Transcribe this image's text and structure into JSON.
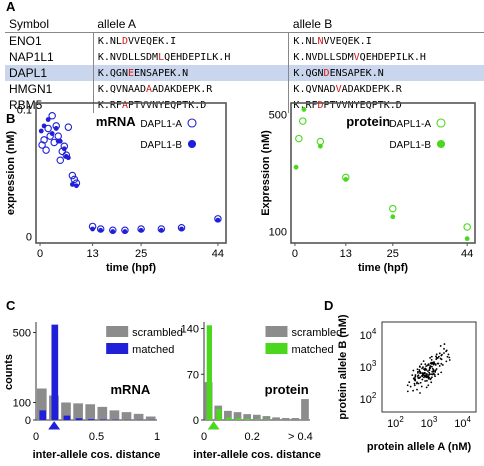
{
  "panels": {
    "a": "A",
    "b": "B",
    "c": "C",
    "d": "D"
  },
  "table": {
    "headers": [
      "Symbol",
      "allele A",
      "allele B"
    ],
    "rows": [
      {
        "symbol": "ENO1",
        "a": [
          "K.NL",
          "D",
          "VVEQEK.I"
        ],
        "b": [
          "K.NL",
          "N",
          "VVEQEK.I"
        ],
        "highlight": false
      },
      {
        "symbol": "NAP1L1",
        "a": [
          "K.NVDLLSDM",
          "L",
          "QEHDEPILK.H"
        ],
        "b": [
          "K.NVDLLSDM",
          "V",
          "QEHDEPILK.H"
        ],
        "highlight": false
      },
      {
        "symbol": "DAPL1",
        "a": [
          "K.QGN",
          "E",
          "ENSAPEK.N"
        ],
        "b": [
          "K.QGN",
          "D",
          "ENSAPEK.N"
        ],
        "highlight": true
      },
      {
        "symbol": "HMGN1",
        "a": [
          "K.QVNAAD",
          "A",
          "ADAKDEPK.R"
        ],
        "b": [
          "K.QVNAD",
          "V",
          "ADAKDEPK.R"
        ],
        "highlight": false
      },
      {
        "symbol": "RBM5",
        "a": [
          "K.RF",
          "A",
          "PTVVNYEQPTK.D"
        ],
        "b": [
          "K.RF",
          "D",
          "PTVVNYEQPTK.D"
        ],
        "highlight": false
      }
    ]
  },
  "colors": {
    "mrna": "#2020d8",
    "protein": "#4bd81c",
    "grey": "#8c8c8c",
    "highlight": "#c9d6ee",
    "aa_change": "#d21a1a"
  },
  "chart_data": [
    {
      "id": "B-mRNA",
      "type": "scatter",
      "title": "mRNA",
      "xlabel": "time (hpf)",
      "ylabel": "expression (nM)",
      "xticks": [
        "0",
        "13",
        "25",
        "44"
      ],
      "xtick_vals": [
        0,
        13,
        25,
        44
      ],
      "yticks": [
        "0",
        "0.1"
      ],
      "ytick_vals": [
        0,
        0.1
      ],
      "xlim": [
        -1,
        46
      ],
      "ylim": [
        -0.005,
        0.105
      ],
      "series": [
        {
          "name": "DAPL1-A",
          "marker": "open",
          "color": "#2020d8",
          "points": [
            [
              0.5,
              0.072
            ],
            [
              1,
              0.076
            ],
            [
              1.5,
              0.068
            ],
            [
              2,
              0.085
            ],
            [
              2.5,
              0.079
            ],
            [
              3,
              0.095
            ],
            [
              3.5,
              0.074
            ],
            [
              4,
              0.087
            ],
            [
              4.5,
              0.079
            ],
            [
              5,
              0.06
            ],
            [
              5.5,
              0.067
            ],
            [
              6,
              0.071
            ],
            [
              6.5,
              0.064
            ],
            [
              7,
              0.086
            ],
            [
              8,
              0.048
            ],
            [
              8.5,
              0.045
            ],
            [
              9,
              0.042
            ],
            [
              13,
              0.008
            ],
            [
              15,
              0.006
            ],
            [
              18,
              0.005
            ],
            [
              21,
              0.005
            ],
            [
              25,
              0.006
            ],
            [
              30,
              0.006
            ],
            [
              35,
              0.007
            ],
            [
              44,
              0.014
            ]
          ]
        },
        {
          "name": "DAPL1-B",
          "marker": "filled",
          "color": "#2020d8",
          "points": [
            [
              0.3,
              0.083
            ],
            [
              1,
              0.087
            ],
            [
              2,
              0.092
            ],
            [
              3,
              0.081
            ],
            [
              4,
              0.085
            ],
            [
              4.5,
              0.075
            ],
            [
              5,
              0.075
            ],
            [
              6,
              0.069
            ],
            [
              6.5,
              0.063
            ],
            [
              7,
              0.062
            ],
            [
              8,
              0.041
            ],
            [
              9,
              0.04
            ],
            [
              13,
              0.006
            ],
            [
              15,
              0.005
            ],
            [
              18,
              0.004
            ],
            [
              21,
              0.004
            ],
            [
              25,
              0.005
            ],
            [
              30,
              0.005
            ],
            [
              35,
              0.006
            ],
            [
              44,
              0.013
            ]
          ]
        }
      ]
    },
    {
      "id": "B-protein",
      "type": "scatter",
      "title": "protein",
      "xlabel": "time (hpf)",
      "ylabel": "Expression (nM)",
      "xticks": [
        "0",
        "13",
        "25",
        "44"
      ],
      "xtick_vals": [
        0,
        13,
        25,
        44
      ],
      "yticks": [
        "100",
        "500"
      ],
      "ytick_vals": [
        100,
        500
      ],
      "xlim": [
        -1,
        46
      ],
      "ylim": [
        60,
        540
      ],
      "series": [
        {
          "name": "DAPL1-A",
          "marker": "open",
          "color": "#4bd81c",
          "points": [
            [
              1,
              418
            ],
            [
              2,
              478
            ],
            [
              6.5,
              408
            ],
            [
              13,
              285
            ],
            [
              25,
              178
            ],
            [
              44,
              115
            ]
          ]
        },
        {
          "name": "DAPL1-B",
          "marker": "filled",
          "color": "#4bd81c",
          "points": [
            [
              0.3,
              320
            ],
            [
              2.3,
              518
            ],
            [
              6.5,
              392
            ],
            [
              13,
              278
            ],
            [
              25,
              150
            ],
            [
              44,
              75
            ]
          ]
        }
      ]
    },
    {
      "id": "C-mRNA",
      "type": "bar",
      "title": "mRNA",
      "xlabel": "inter-allele cos. distance",
      "ylabel": "counts",
      "xticks": [
        "0",
        "0.5",
        "1"
      ],
      "xtick_vals": [
        0,
        0.5,
        1
      ],
      "yticks": [
        "0",
        "100",
        "500"
      ],
      "ytick_vals": [
        0,
        100,
        500
      ],
      "ylim": [
        0,
        560
      ],
      "bin_width": 0.1,
      "categories": [
        0.0,
        0.1,
        0.2,
        0.3,
        0.4,
        0.5,
        0.6,
        0.7,
        0.8,
        0.9
      ],
      "series": [
        {
          "name": "scrambled",
          "color": "#8c8c8c",
          "values": [
            180,
            140,
            100,
            95,
            90,
            75,
            55,
            45,
            35,
            20
          ]
        },
        {
          "name": "matched",
          "color": "#2020d8",
          "values": [
            55,
            545,
            25,
            10,
            5,
            3,
            2,
            1,
            1,
            1
          ]
        }
      ],
      "marker_x": 0.1
    },
    {
      "id": "C-protein",
      "type": "bar",
      "title": "protein",
      "xlabel": "inter-allele cos. distance",
      "ylabel": "",
      "xticks": [
        "0",
        "0.2",
        "> 0.4"
      ],
      "xtick_vals": [
        0,
        0.2,
        0.4
      ],
      "yticks": [
        "0",
        "70",
        "140"
      ],
      "ytick_vals": [
        0,
        70,
        140
      ],
      "ylim": [
        0,
        150
      ],
      "bin_width": 0.04,
      "categories": [
        0.0,
        0.04,
        0.08,
        0.12,
        0.16,
        0.2,
        0.24,
        0.28,
        0.32,
        0.36,
        0.4
      ],
      "series": [
        {
          "name": "scrambled",
          "color": "#8c8c8c",
          "values": [
            58,
            22,
            14,
            12,
            9,
            8,
            6,
            4,
            3,
            3,
            32
          ]
        },
        {
          "name": "matched",
          "color": "#4bd81c",
          "values": [
            145,
            17,
            4,
            3,
            2,
            1,
            1,
            0,
            0,
            0,
            0
          ]
        }
      ],
      "marker_x": 0.02
    },
    {
      "id": "D",
      "type": "scatter",
      "title": "",
      "xlabel": "protein allele A (nM)",
      "ylabel": "protein allele B (nM)",
      "xticks": [
        "10^2",
        "10^3",
        "10^4"
      ],
      "xtick_vals": [
        2,
        3,
        4
      ],
      "yticks": [
        "10^2",
        "10^3",
        "10^4"
      ],
      "ytick_vals": [
        2,
        3,
        4
      ],
      "xlim": [
        1.6,
        4.4
      ],
      "ylim": [
        1.6,
        4.4
      ],
      "log_scale": true,
      "n_points": 160
    }
  ]
}
